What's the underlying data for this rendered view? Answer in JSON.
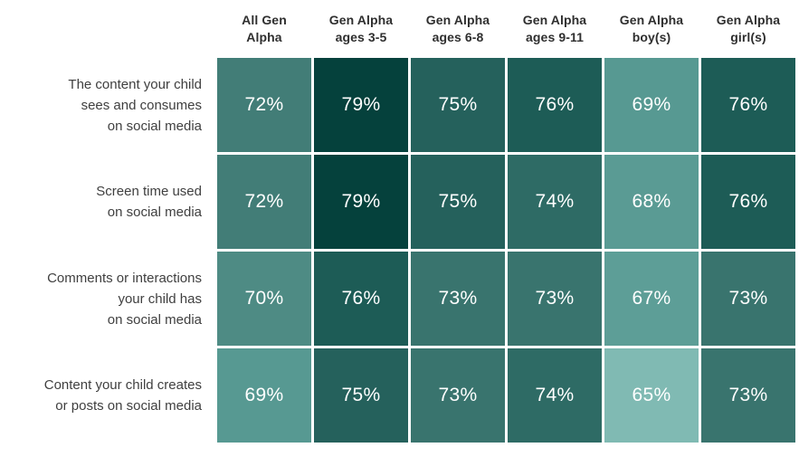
{
  "chart_data": {
    "type": "heatmap",
    "columns": [
      {
        "line1": "All Gen",
        "line2": "Alpha"
      },
      {
        "line1": "Gen Alpha",
        "line2": "ages 3-5"
      },
      {
        "line1": "Gen Alpha",
        "line2": "ages 6-8"
      },
      {
        "line1": "Gen Alpha",
        "line2": "ages 9-11"
      },
      {
        "line1": "Gen Alpha",
        "line2": "boy(s)"
      },
      {
        "line1": "Gen Alpha",
        "line2": "girl(s)"
      }
    ],
    "rows": [
      {
        "label_lines": [
          "The content your child",
          "sees and consumes",
          "on social media"
        ],
        "values": [
          72,
          79,
          75,
          76,
          69,
          76
        ]
      },
      {
        "label_lines": [
          "Screen time used",
          "on social media"
        ],
        "values": [
          72,
          79,
          75,
          74,
          68,
          76
        ]
      },
      {
        "label_lines": [
          "Comments or interactions",
          "your child has",
          "on social media"
        ],
        "values": [
          70,
          76,
          73,
          73,
          67,
          73
        ]
      },
      {
        "label_lines": [
          "Content your child creates",
          "or posts on social media"
        ],
        "values": [
          69,
          75,
          73,
          74,
          65,
          73
        ]
      }
    ],
    "value_suffix": "%",
    "value_range": [
      65,
      79
    ],
    "legend": "none",
    "grid": "white 3px gaps between cells",
    "color_scale": {
      "65": "#80bab3",
      "67": "#5d9e97",
      "68": "#5a9b94",
      "69": "#579992",
      "70": "#4e8b84",
      "72": "#427d77",
      "73": "#39746e",
      "74": "#2e6b65",
      "75": "#25615c",
      "76": "#1d5c56",
      "79": "#05413c"
    },
    "colors": {
      "cell_text": "#ffffff",
      "header_text": "#2f2f2f",
      "row_label_text": "#3f3f3f",
      "background": "#ffffff"
    }
  }
}
